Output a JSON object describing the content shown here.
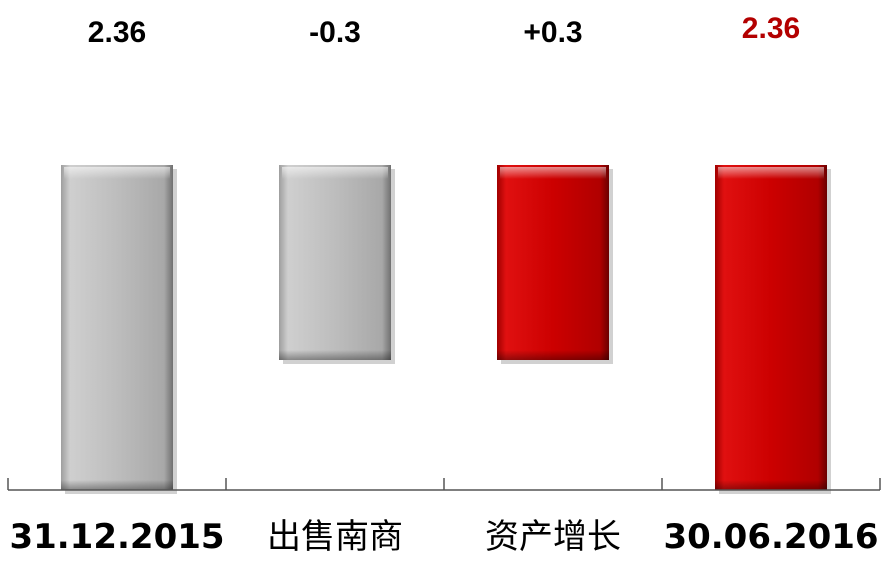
{
  "chart_data": {
    "type": "waterfall",
    "categories": [
      "31.12.2015",
      "出售南商",
      "资产增长",
      "30.06.2016"
    ],
    "values": [
      2.36,
      -0.3,
      0.3,
      2.36
    ],
    "data_labels": [
      "2.36",
      "-0.3",
      "+0.3",
      "2.36"
    ],
    "bar_kinds": [
      "total",
      "decrease",
      "increase",
      "total"
    ],
    "ylim": [
      0,
      2.36
    ],
    "grid": false,
    "legend": "none",
    "colors": {
      "gray_fill": "#bdbdbd",
      "red_fill": "#cc0000",
      "label_default": "#000000",
      "label_highlight": "#b30000",
      "axis": "#555555"
    }
  }
}
